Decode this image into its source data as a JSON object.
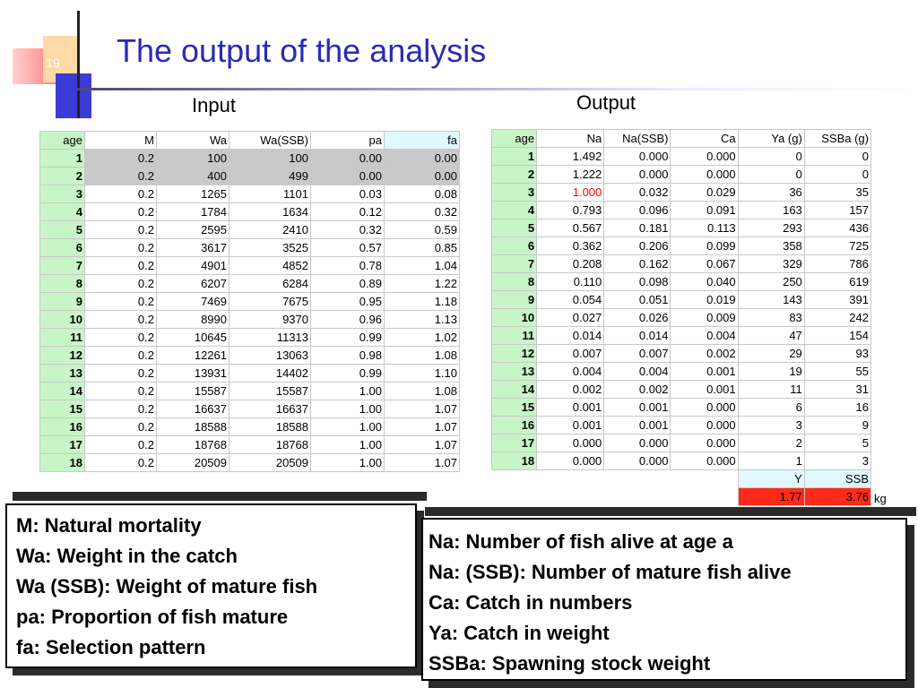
{
  "slide": {
    "number": "19",
    "title": "The output of the analysis"
  },
  "labels": {
    "input": "Input",
    "output": "Output"
  },
  "input_table": {
    "headers": [
      "age",
      "M",
      "Wa",
      "Wa(SSB)",
      "pa",
      "fa"
    ],
    "rows": [
      [
        "1",
        "0.2",
        "100",
        "100",
        "0.00",
        "0.00"
      ],
      [
        "2",
        "0.2",
        "400",
        "499",
        "0.00",
        "0.00"
      ],
      [
        "3",
        "0.2",
        "1265",
        "1101",
        "0.03",
        "0.08"
      ],
      [
        "4",
        "0.2",
        "1784",
        "1634",
        "0.12",
        "0.32"
      ],
      [
        "5",
        "0.2",
        "2595",
        "2410",
        "0.32",
        "0.59"
      ],
      [
        "6",
        "0.2",
        "3617",
        "3525",
        "0.57",
        "0.85"
      ],
      [
        "7",
        "0.2",
        "4901",
        "4852",
        "0.78",
        "1.04"
      ],
      [
        "8",
        "0.2",
        "6207",
        "6284",
        "0.89",
        "1.22"
      ],
      [
        "9",
        "0.2",
        "7469",
        "7675",
        "0.95",
        "1.18"
      ],
      [
        "10",
        "0.2",
        "8990",
        "9370",
        "0.96",
        "1.13"
      ],
      [
        "11",
        "0.2",
        "10645",
        "11313",
        "0.99",
        "1.02"
      ],
      [
        "12",
        "0.2",
        "12261",
        "13063",
        "0.98",
        "1.08"
      ],
      [
        "13",
        "0.2",
        "13931",
        "14402",
        "0.99",
        "1.10"
      ],
      [
        "14",
        "0.2",
        "15587",
        "15587",
        "1.00",
        "1.08"
      ],
      [
        "15",
        "0.2",
        "16637",
        "16637",
        "1.00",
        "1.07"
      ],
      [
        "16",
        "0.2",
        "18588",
        "18588",
        "1.00",
        "1.07"
      ],
      [
        "17",
        "0.2",
        "18768",
        "18768",
        "1.00",
        "1.07"
      ],
      [
        "18",
        "0.2",
        "20509",
        "20509",
        "1.00",
        "1.07"
      ]
    ]
  },
  "output_table": {
    "headers": [
      "age",
      "Na",
      "Na(SSB)",
      "Ca",
      "Ya (g)",
      "SSBa (g)"
    ],
    "rows": [
      [
        "1",
        "1.492",
        "0.000",
        "0.000",
        "0",
        "0"
      ],
      [
        "2",
        "1.222",
        "0.000",
        "0.000",
        "0",
        "0"
      ],
      [
        "3",
        "1.000",
        "0.032",
        "0.029",
        "36",
        "35"
      ],
      [
        "4",
        "0.793",
        "0.096",
        "0.091",
        "163",
        "157"
      ],
      [
        "5",
        "0.567",
        "0.181",
        "0.113",
        "293",
        "436"
      ],
      [
        "6",
        "0.362",
        "0.206",
        "0.099",
        "358",
        "725"
      ],
      [
        "7",
        "0.208",
        "0.162",
        "0.067",
        "329",
        "786"
      ],
      [
        "8",
        "0.110",
        "0.098",
        "0.040",
        "250",
        "619"
      ],
      [
        "9",
        "0.054",
        "0.051",
        "0.019",
        "143",
        "391"
      ],
      [
        "10",
        "0.027",
        "0.026",
        "0.009",
        "83",
        "242"
      ],
      [
        "11",
        "0.014",
        "0.014",
        "0.004",
        "47",
        "154"
      ],
      [
        "12",
        "0.007",
        "0.007",
        "0.002",
        "29",
        "93"
      ],
      [
        "13",
        "0.004",
        "0.004",
        "0.001",
        "19",
        "55"
      ],
      [
        "14",
        "0.002",
        "0.002",
        "0.001",
        "11",
        "31"
      ],
      [
        "15",
        "0.001",
        "0.001",
        "0.000",
        "6",
        "16"
      ],
      [
        "16",
        "0.001",
        "0.001",
        "0.000",
        "3",
        "9"
      ],
      [
        "17",
        "0.000",
        "0.000",
        "0.000",
        "2",
        "5"
      ],
      [
        "18",
        "0.000",
        "0.000",
        "0.000",
        "1",
        "3"
      ]
    ],
    "summary": {
      "y_label": "Y",
      "ssb_label": "SSB",
      "y_value": "1.77",
      "ssb_value": "3.76",
      "unit": "kg"
    }
  },
  "definitions_left": [
    "M: Natural mortality",
    "Wa: Weight in the catch",
    "Wa (SSB): Weight of mature fish",
    "pa: Proportion of fish mature",
    "fa: Selection pattern"
  ],
  "definitions_right": [
    "Na: Number of fish alive at age a",
    "Na: (SSB): Number of mature fish alive",
    "Ca: Catch in numbers",
    "Ya: Catch in weight",
    "SSBa: Spawning stock weight"
  ],
  "colors": {
    "title": "#2a2ab8",
    "age_column": "#c8f5c8",
    "highlight": "#ff2a1a"
  }
}
